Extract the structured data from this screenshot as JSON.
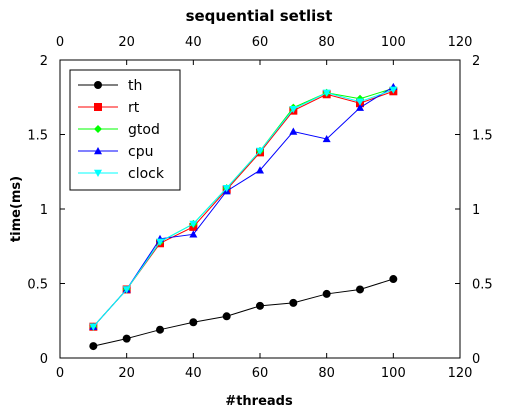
{
  "chart_data": {
    "type": "line",
    "title": "sequential setlist",
    "xlabel": "#threads",
    "ylabel": "time(ms)",
    "xlim": [
      0,
      120
    ],
    "ylim": [
      0,
      2
    ],
    "x_ticks": [
      "0",
      "20",
      "40",
      "60",
      "80",
      "100",
      "120"
    ],
    "y_ticks": [
      "0",
      "0.5",
      "1",
      "1.5",
      "2"
    ],
    "mirror_axes": true,
    "grid": false,
    "legend_position": "top-left",
    "x": [
      10,
      20,
      30,
      40,
      50,
      60,
      70,
      80,
      90,
      100
    ],
    "series": [
      {
        "name": "th",
        "color": "#000000",
        "marker": "circle",
        "values": [
          0.08,
          0.13,
          0.19,
          0.24,
          0.28,
          0.35,
          0.37,
          0.43,
          0.46,
          0.53
        ]
      },
      {
        "name": "rt",
        "color": "#ff0000",
        "marker": "square",
        "values": [
          0.21,
          0.46,
          0.77,
          0.88,
          1.13,
          1.38,
          1.66,
          1.77,
          1.71,
          1.79
        ]
      },
      {
        "name": "gtod",
        "color": "#00ff00",
        "marker": "diamond",
        "values": [
          0.21,
          0.46,
          0.78,
          0.9,
          1.14,
          1.39,
          1.68,
          1.78,
          1.74,
          1.81
        ]
      },
      {
        "name": "cpu",
        "color": "#0000ff",
        "marker": "triangle-up",
        "values": [
          0.21,
          0.46,
          0.8,
          0.83,
          1.12,
          1.26,
          1.52,
          1.47,
          1.68,
          1.82
        ]
      },
      {
        "name": "clock",
        "color": "#00ffff",
        "marker": "triangle-down",
        "values": [
          0.21,
          0.46,
          0.78,
          0.9,
          1.14,
          1.39,
          1.67,
          1.78,
          1.72,
          1.8
        ]
      }
    ]
  }
}
